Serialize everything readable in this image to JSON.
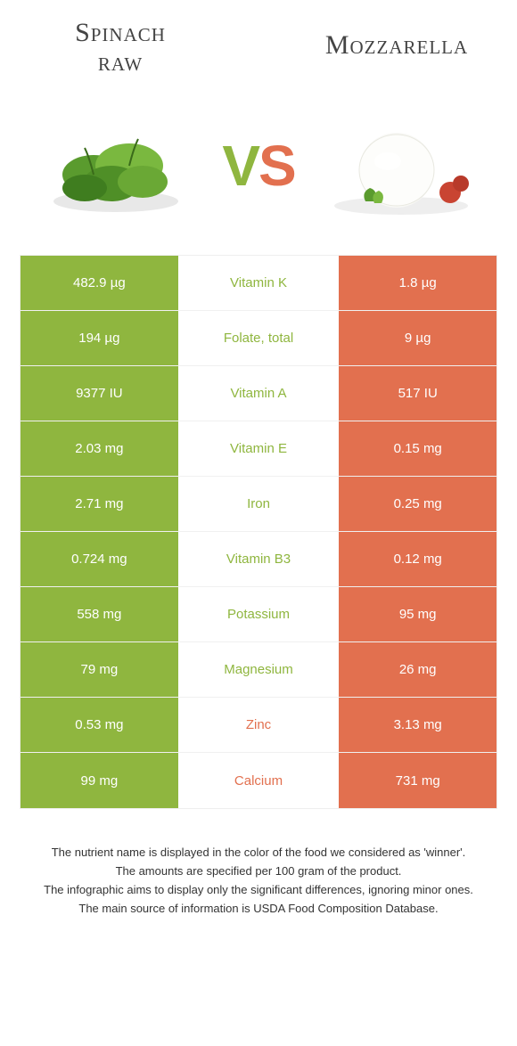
{
  "colors": {
    "left": "#8fb63f",
    "right": "#e2704f",
    "left_text": "#8fb63f",
    "right_text": "#e2704f",
    "row_border": "#f0f0f0",
    "background": "#ffffff"
  },
  "header": {
    "left_title_line1": "Spinach",
    "left_title_line2": "raw",
    "right_title": "Mozzarella",
    "vs_v": "V",
    "vs_s": "S"
  },
  "table": {
    "rows": [
      {
        "left": "482.9 µg",
        "label": "Vitamin K",
        "right": "1.8 µg",
        "winner": "left"
      },
      {
        "left": "194 µg",
        "label": "Folate, total",
        "right": "9 µg",
        "winner": "left"
      },
      {
        "left": "9377 IU",
        "label": "Vitamin A",
        "right": "517 IU",
        "winner": "left"
      },
      {
        "left": "2.03 mg",
        "label": "Vitamin E",
        "right": "0.15 mg",
        "winner": "left"
      },
      {
        "left": "2.71 mg",
        "label": "Iron",
        "right": "0.25 mg",
        "winner": "left"
      },
      {
        "left": "0.724 mg",
        "label": "Vitamin B3",
        "right": "0.12 mg",
        "winner": "left"
      },
      {
        "left": "558 mg",
        "label": "Potassium",
        "right": "95 mg",
        "winner": "left"
      },
      {
        "left": "79 mg",
        "label": "Magnesium",
        "right": "26 mg",
        "winner": "left"
      },
      {
        "left": "0.53 mg",
        "label": "Zinc",
        "right": "3.13 mg",
        "winner": "right"
      },
      {
        "left": "99 mg",
        "label": "Calcium",
        "right": "731 mg",
        "winner": "right"
      }
    ]
  },
  "footnotes": {
    "line1": "The nutrient name is displayed in the color of the food we considered as 'winner'.",
    "line2": "The amounts are specified per 100 gram of the product.",
    "line3": "The infographic aims to display only the significant differences, ignoring minor ones.",
    "line4": "The main source of information is USDA Food Composition Database."
  }
}
